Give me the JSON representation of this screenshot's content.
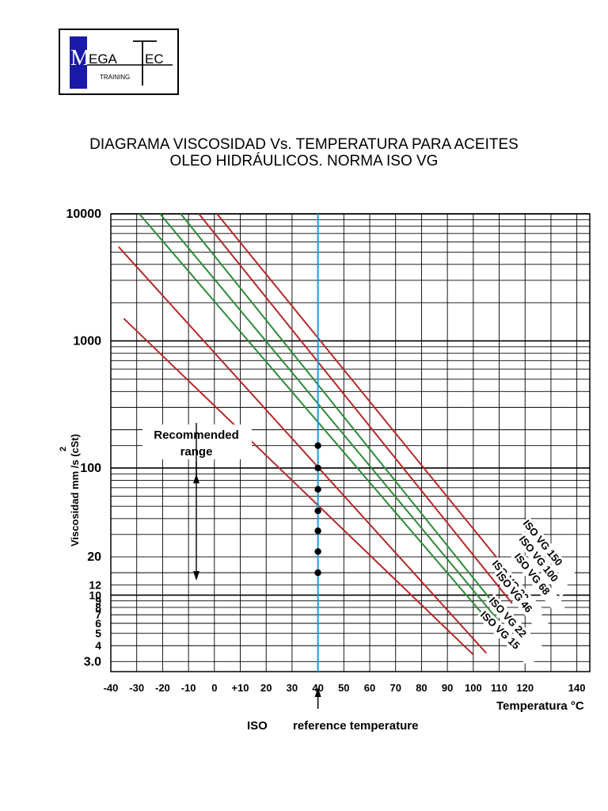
{
  "logo": {
    "brand_left": "M",
    "brand_mid": "EGA",
    "brand_t": "T",
    "brand_right": "EC",
    "sub": "TRAINING"
  },
  "title": {
    "line1": "DIAGRAMA VISCOSIDAD Vs. TEMPERATURA PARA ACEITES",
    "line2": "OLEO HIDRÁULICOS. NORMA ISO VG"
  },
  "chart_data": {
    "type": "line",
    "ylabel_main": "Viscosidad  mm /s  (cSt)",
    "ylabel_sup": "2",
    "xlabel": "Temperatura  °C",
    "y_scale": "log",
    "ylim": [
      2.5,
      10000
    ],
    "xlim": [
      -40,
      145
    ],
    "x_ticks": [
      {
        "v": -40,
        "label": "-40"
      },
      {
        "v": -30,
        "label": "-30"
      },
      {
        "v": -20,
        "label": "-20"
      },
      {
        "v": -10,
        "label": "-10"
      },
      {
        "v": 0,
        "label": "0"
      },
      {
        "v": 10,
        "label": "+10"
      },
      {
        "v": 20,
        "label": "20"
      },
      {
        "v": 30,
        "label": "30"
      },
      {
        "v": 40,
        "label": "40"
      },
      {
        "v": 50,
        "label": "50"
      },
      {
        "v": 60,
        "label": "60"
      },
      {
        "v": 70,
        "label": "70"
      },
      {
        "v": 80,
        "label": "80"
      },
      {
        "v": 90,
        "label": "90"
      },
      {
        "v": 100,
        "label": "100"
      },
      {
        "v": 110,
        "label": "110"
      },
      {
        "v": 120,
        "label": "120"
      },
      {
        "v": 140,
        "label": "140"
      }
    ],
    "y_ticks": [
      {
        "v": 10000,
        "label": "10000",
        "size": "large"
      },
      {
        "v": 1000,
        "label": "1000",
        "size": "large"
      },
      {
        "v": 100,
        "label": "100",
        "size": "large"
      },
      {
        "v": 20,
        "label": "20",
        "size": "large"
      },
      {
        "v": 12,
        "label": "12",
        "size": "small"
      },
      {
        "v": 10,
        "label": "10",
        "size": "small"
      },
      {
        "v": 9,
        "label": "9",
        "size": "small"
      },
      {
        "v": 8,
        "label": "8",
        "size": "small"
      },
      {
        "v": 7,
        "label": "7",
        "size": "small"
      },
      {
        "v": 6,
        "label": "6",
        "size": "small"
      },
      {
        "v": 5,
        "label": "5",
        "size": "small"
      },
      {
        "v": 4,
        "label": "4",
        "size": "small"
      },
      {
        "v": 3.0,
        "label": "3.0",
        "size": "large"
      }
    ],
    "x_gridlines": [
      -40,
      -30,
      -20,
      -10,
      0,
      10,
      20,
      30,
      40,
      50,
      60,
      70,
      80,
      90,
      100,
      110,
      120,
      130,
      140
    ],
    "y_gridlines": [
      3,
      4,
      5,
      6,
      7,
      8,
      9,
      10,
      12,
      15,
      20,
      30,
      40,
      50,
      60,
      70,
      80,
      90,
      100,
      150,
      200,
      300,
      400,
      500,
      600,
      700,
      800,
      900,
      1000,
      2000,
      3000,
      4000,
      5000,
      6000,
      7000,
      8000,
      9000,
      10000
    ],
    "reference_temperature": 40,
    "series": [
      {
        "name": "ISO VG 15",
        "color": "#b52a2a",
        "x": [
          -35,
          100
        ],
        "y": [
          1500,
          3.4
        ],
        "ref": 15
      },
      {
        "name": "ISO VG 22",
        "color": "#b52a2a",
        "x": [
          -37,
          105
        ],
        "y": [
          5500,
          3.5
        ],
        "ref": 22
      },
      {
        "name": "ISO VG 32",
        "color": "#2e8b3a",
        "x": [
          -29,
          110
        ],
        "y": [
          10000,
          5.0
        ],
        "ref": 32
      },
      {
        "name": "ISO VG 46",
        "color": "#2e8b3a",
        "x": [
          -21,
          110
        ],
        "y": [
          10000,
          6.2
        ],
        "ref": 46
      },
      {
        "name": "ISO VG 68",
        "color": "#2e8b3a",
        "x": [
          -13,
          110
        ],
        "y": [
          10000,
          7.6
        ],
        "ref": 68
      },
      {
        "name": "ISO VG 100",
        "color": "#b52a2a",
        "x": [
          -6,
          115
        ],
        "y": [
          10000,
          8.6
        ],
        "ref": 100
      },
      {
        "name": "ISO VG 150",
        "color": "#b52a2a",
        "x": [
          1,
          120
        ],
        "y": [
          10000,
          10.5
        ],
        "ref": 150
      }
    ],
    "annotations": {
      "recommended_line1": "Recommended",
      "recommended_line2": "range",
      "recommended_range": [
        13,
        90
      ],
      "iso": "ISO",
      "reference": "reference temperature"
    }
  }
}
